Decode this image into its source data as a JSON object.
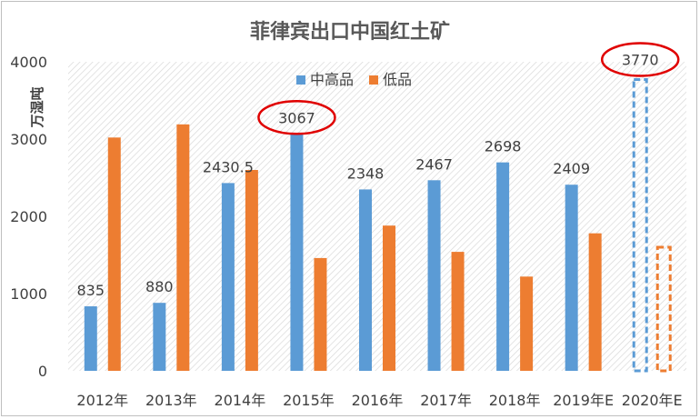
{
  "chart_data": {
    "type": "bar",
    "title": "菲律宾出口中国红土矿",
    "ylabel": "万湿吨",
    "xlabel": "",
    "ylim": [
      0,
      4000
    ],
    "yticks": [
      0,
      1000,
      2000,
      3000,
      4000
    ],
    "categories": [
      "2012年",
      "2013年",
      "2014年",
      "2015年",
      "2016年",
      "2017年",
      "2018年",
      "2019年E",
      "2020年E"
    ],
    "series": [
      {
        "name": "中高品",
        "color": "#5b9bd5",
        "values": [
          835,
          880,
          2430.5,
          3067,
          2348,
          2467,
          2698,
          2409,
          3770
        ],
        "labels": [
          "835",
          "880",
          "2430.5",
          "3067",
          "2348",
          "2467",
          "2698",
          "2409",
          "3770"
        ]
      },
      {
        "name": "低品",
        "color": "#ed7d31",
        "values": [
          3020,
          3190,
          2600,
          1460,
          1880,
          1540,
          1220,
          1780,
          1600
        ]
      }
    ],
    "forecast_category": "2020年E",
    "highlighted_labels": [
      "3067",
      "3770"
    ],
    "highlight_color": "#e00000",
    "legend_position": "top",
    "grid": false
  }
}
